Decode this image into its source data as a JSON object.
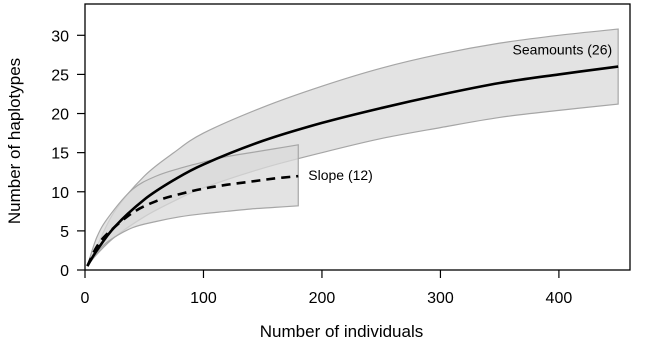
{
  "chart_data": {
    "type": "line",
    "xlabel": "Number of individuals",
    "ylabel": "Number of haplotypes",
    "xlim": [
      0,
      460
    ],
    "ylim": [
      0,
      34
    ],
    "x_ticks": [
      0,
      100,
      200,
      300,
      400
    ],
    "y_ticks": [
      0,
      5,
      10,
      15,
      20,
      25,
      30
    ],
    "grid": false,
    "legend": "none",
    "colors": {
      "band": "#d9d9d9",
      "band_edge": "#a6a6a6",
      "line": "#000000"
    },
    "series": [
      {
        "name": "Seamounts (26)",
        "line_style": "solid",
        "x": [
          2,
          10,
          25,
          50,
          75,
          100,
          150,
          200,
          250,
          300,
          350,
          400,
          450
        ],
        "values": [
          0.5,
          2.5,
          5.5,
          9.0,
          11.5,
          13.5,
          16.5,
          18.8,
          20.7,
          22.4,
          23.9,
          25.0,
          26.0
        ],
        "lower": [
          0.5,
          2.0,
          4.2,
          6.8,
          8.8,
          10.5,
          13.0,
          15.0,
          16.8,
          18.2,
          19.5,
          20.4,
          21.2
        ],
        "upper": [
          0.5,
          3.0,
          7.5,
          12.0,
          15.0,
          17.5,
          20.8,
          23.5,
          25.8,
          27.6,
          29.0,
          30.0,
          30.8
        ]
      },
      {
        "name": "Slope (12)",
        "line_style": "dashed",
        "x": [
          2,
          10,
          20,
          40,
          60,
          80,
          100,
          120,
          140,
          160,
          180
        ],
        "values": [
          0.5,
          3.0,
          4.8,
          7.3,
          8.8,
          9.7,
          10.4,
          10.9,
          11.3,
          11.7,
          12.0
        ],
        "lower": [
          0.5,
          2.2,
          3.7,
          5.4,
          6.2,
          6.8,
          7.2,
          7.5,
          7.8,
          8.0,
          8.2
        ],
        "upper": [
          0.5,
          4.2,
          6.8,
          10.3,
          12.0,
          13.0,
          13.8,
          14.5,
          15.0,
          15.5,
          16.0
        ]
      }
    ]
  }
}
